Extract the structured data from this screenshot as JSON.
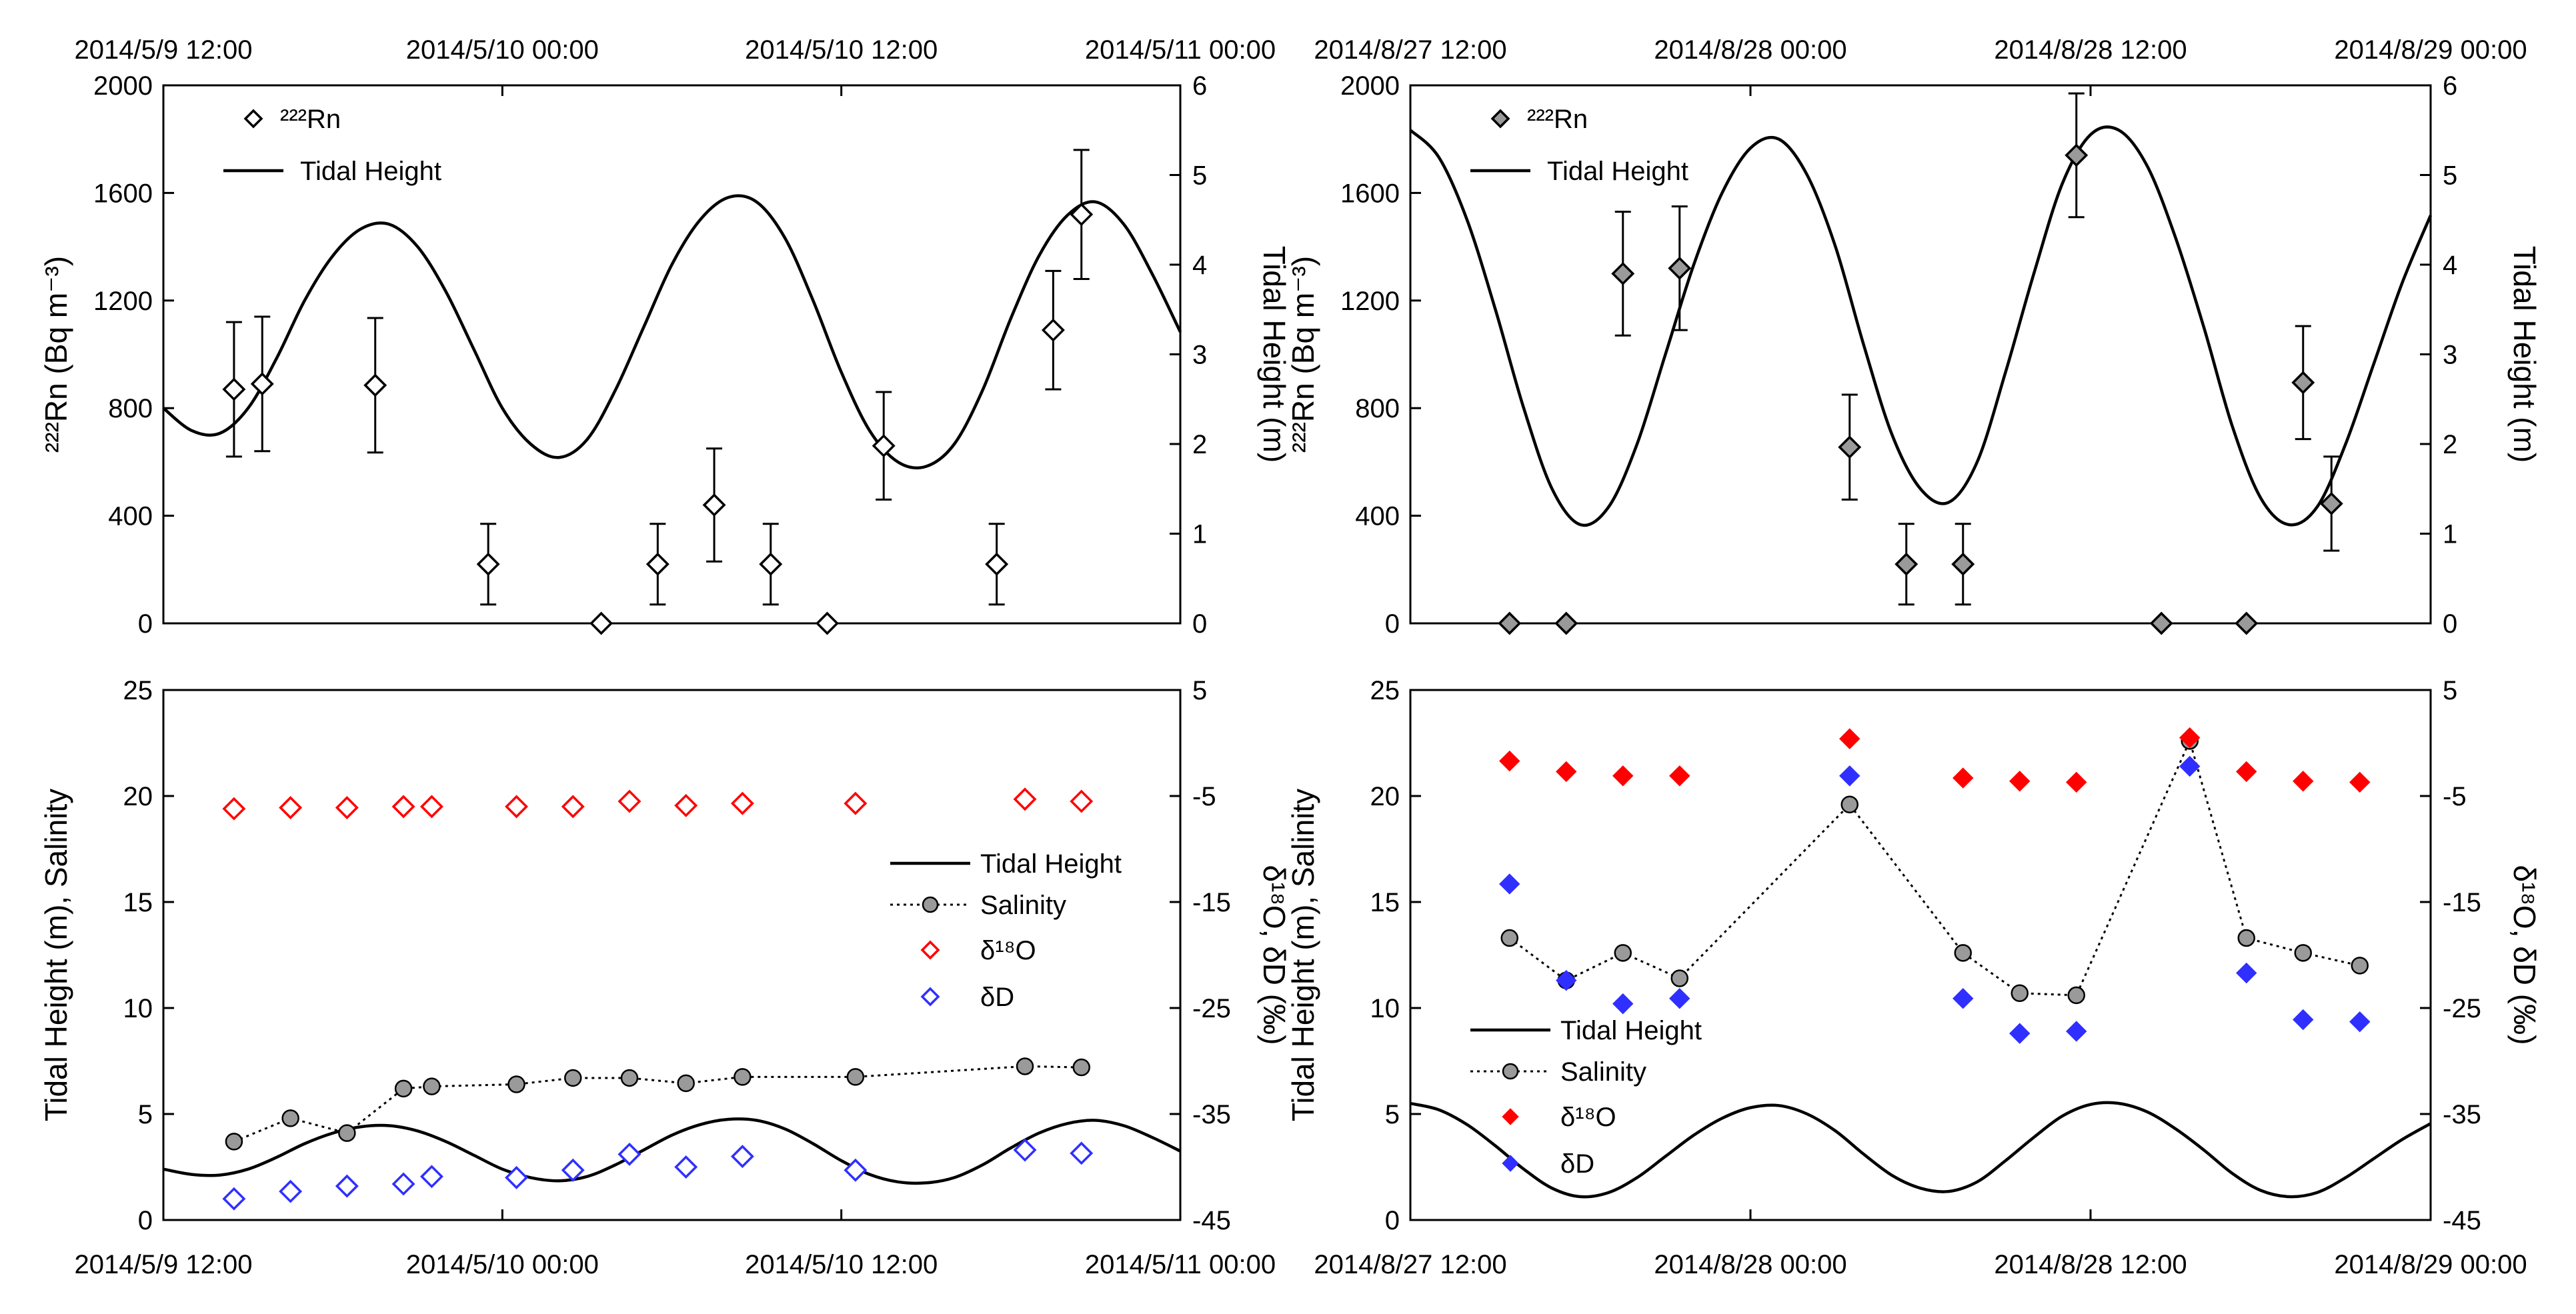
{
  "figure": {
    "legend_labels": {
      "rn": "²²²Rn",
      "tidal": "Tidal Height",
      "salinity": "Salinity",
      "d18o": "δ¹⁸O",
      "dd": "δD"
    },
    "axis_titles": {
      "rn": "²²²Rn (Bq m⁻³)",
      "tidal": "Tidal Height (m)",
      "tidal_salinity": "Tidal Height (m), Salinity",
      "isotope": "δ¹⁸O, δD (‰)"
    },
    "colors": {
      "d18o": "#ff0000",
      "dd": "#2f2fff",
      "salinity_marker": "#9a9a9a",
      "rn_right_marker": "#9a9a9a"
    }
  },
  "chart_data": [
    {
      "id": "may-radon",
      "type": "scatter",
      "xlabel_ticks": [
        "2014/5/9 12:00",
        "2014/5/10 00:00",
        "2014/5/10 12:00",
        "2014/5/11 00:00"
      ],
      "xrange_hours": [
        0,
        36
      ],
      "ylim": [
        0,
        2000
      ],
      "yticks": [
        0,
        400,
        800,
        1200,
        1600,
        2000
      ],
      "ylabel": "²²²Rn (Bq m⁻³)",
      "y2lim": [
        0,
        6
      ],
      "y2ticks": [
        0,
        1,
        2,
        3,
        4,
        5,
        6
      ],
      "y2label": "Tidal Height (m)",
      "legend_position": "top-left",
      "rn": {
        "name": "²²²Rn",
        "x": [
          2.5,
          3.5,
          7.5,
          11.5,
          15.5,
          17.5,
          19.5,
          21.5,
          23.5,
          25.5,
          29.5,
          31.5,
          32.5
        ],
        "y": [
          870,
          890,
          885,
          220,
          0,
          220,
          440,
          220,
          0,
          660,
          220,
          1090,
          1520
        ],
        "err": [
          250,
          250,
          250,
          150,
          0,
          150,
          210,
          150,
          0,
          200,
          150,
          220,
          240
        ]
      },
      "tide": {
        "name": "Tidal Height",
        "x": [
          0,
          1,
          2,
          3,
          4,
          5,
          6,
          7,
          8,
          9,
          10,
          11,
          12,
          13,
          14,
          15,
          16,
          17,
          18,
          19,
          20,
          21,
          22,
          23,
          24,
          25,
          26,
          27,
          28,
          29,
          30,
          31,
          32,
          33,
          34,
          35,
          36
        ],
        "y": [
          2.4,
          2.15,
          2.12,
          2.4,
          2.95,
          3.6,
          4.1,
          4.4,
          4.45,
          4.2,
          3.7,
          3.05,
          2.4,
          2.0,
          1.85,
          2.05,
          2.6,
          3.3,
          4.0,
          4.5,
          4.75,
          4.7,
          4.3,
          3.6,
          2.8,
          2.15,
          1.8,
          1.75,
          2.0,
          2.6,
          3.4,
          4.1,
          4.55,
          4.7,
          4.45,
          3.9,
          3.25
        ]
      }
    },
    {
      "id": "aug-radon",
      "type": "scatter",
      "xlabel_ticks": [
        "2014/8/27 12:00",
        "2014/8/28 00:00",
        "2014/8/28 12:00",
        "2014/8/29 00:00"
      ],
      "xrange_hours": [
        0,
        36
      ],
      "ylim": [
        0,
        2000
      ],
      "yticks": [
        0,
        400,
        800,
        1200,
        1600,
        2000
      ],
      "ylabel": "²²²Rn (Bq m⁻³)",
      "y2lim": [
        0,
        6
      ],
      "y2ticks": [
        0,
        1,
        2,
        3,
        4,
        5,
        6
      ],
      "y2label": "Tidal Height (m)",
      "legend_position": "top-left",
      "rn": {
        "name": "²²²Rn",
        "x": [
          3.5,
          5.5,
          7.5,
          9.5,
          15.5,
          17.5,
          19.5,
          23.5,
          26.5,
          29.5,
          31.5,
          32.5
        ],
        "y": [
          0,
          0,
          1300,
          1320,
          655,
          220,
          220,
          1740,
          0,
          0,
          895,
          445
        ],
        "err": [
          0,
          0,
          230,
          230,
          195,
          150,
          150,
          230,
          0,
          0,
          210,
          175
        ]
      },
      "tide": {
        "name": "Tidal Height",
        "x": [
          0,
          1,
          2,
          3,
          4,
          5,
          6,
          7,
          8,
          9,
          10,
          11,
          12,
          13,
          14,
          15,
          16,
          17,
          18,
          19,
          20,
          21,
          22,
          23,
          24,
          25,
          26,
          27,
          28,
          29,
          30,
          31,
          32,
          33,
          34,
          35,
          36
        ],
        "y": [
          5.5,
          5.2,
          4.5,
          3.5,
          2.4,
          1.5,
          1.1,
          1.3,
          2.0,
          3.0,
          4.0,
          4.8,
          5.3,
          5.4,
          5.0,
          4.2,
          3.1,
          2.1,
          1.5,
          1.35,
          1.8,
          2.8,
          3.9,
          4.9,
          5.45,
          5.5,
          5.1,
          4.3,
          3.3,
          2.2,
          1.4,
          1.1,
          1.3,
          2.0,
          2.9,
          3.8,
          4.55
        ]
      }
    },
    {
      "id": "may-isotope",
      "type": "scatter",
      "xlabel_ticks": [
        "2014/5/9 12:00",
        "2014/5/10 00:00",
        "2014/5/10 12:00",
        "2014/5/11 00:00"
      ],
      "xrange_hours": [
        0,
        36
      ],
      "ylim": [
        0,
        25
      ],
      "yticks": [
        0,
        5,
        10,
        15,
        20,
        25
      ],
      "ylabel": "Tidal Height (m), Salinity",
      "y2lim": [
        -45,
        5
      ],
      "y2ticks": [
        -45,
        -35,
        -25,
        -15,
        -5,
        5
      ],
      "y2label": "δ¹⁸O, δD (‰)",
      "legend_position": "right",
      "tide": {
        "name": "Tidal Height",
        "x": [
          0,
          1,
          2,
          3,
          4,
          5,
          6,
          7,
          8,
          9,
          10,
          11,
          12,
          13,
          14,
          15,
          16,
          17,
          18,
          19,
          20,
          21,
          22,
          23,
          24,
          25,
          26,
          27,
          28,
          29,
          30,
          31,
          32,
          33,
          34,
          35,
          36
        ],
        "y": [
          2.4,
          2.15,
          2.12,
          2.4,
          2.95,
          3.6,
          4.1,
          4.4,
          4.45,
          4.2,
          3.7,
          3.05,
          2.4,
          2.0,
          1.85,
          2.05,
          2.6,
          3.3,
          4.0,
          4.5,
          4.75,
          4.7,
          4.3,
          3.6,
          2.8,
          2.15,
          1.8,
          1.75,
          2.0,
          2.6,
          3.4,
          4.1,
          4.55,
          4.7,
          4.45,
          3.9,
          3.25
        ]
      },
      "salinity": {
        "name": "Salinity",
        "x": [
          2.5,
          4.5,
          6.5,
          8.5,
          9.5,
          12.5,
          14.5,
          16.5,
          18.5,
          20.5,
          24.5,
          30.5,
          32.5
        ],
        "y": [
          3.7,
          4.8,
          4.1,
          6.2,
          6.3,
          6.4,
          6.7,
          6.7,
          6.45,
          6.75,
          6.75,
          7.25,
          7.2
        ]
      },
      "d18o": {
        "name": "δ¹⁸O",
        "x": [
          2.5,
          4.5,
          6.5,
          8.5,
          9.5,
          12.5,
          14.5,
          16.5,
          18.5,
          20.5,
          24.5,
          30.5,
          32.5
        ],
        "y": [
          -6.2,
          -6.1,
          -6.1,
          -6.0,
          -6.0,
          -6.0,
          -6.0,
          -5.5,
          -5.9,
          -5.7,
          -5.7,
          -5.3,
          -5.5
        ]
      },
      "dd": {
        "name": "δD",
        "x": [
          2.5,
          4.5,
          6.5,
          8.5,
          9.5,
          12.5,
          14.5,
          16.5,
          18.5,
          20.5,
          24.5,
          30.5,
          32.5
        ],
        "y": [
          -43.0,
          -42.3,
          -41.8,
          -41.6,
          -40.9,
          -41.0,
          -40.3,
          -38.8,
          -40.0,
          -39.0,
          -40.3,
          -38.4,
          -38.7
        ]
      }
    },
    {
      "id": "aug-isotope",
      "type": "scatter",
      "xlabel_ticks": [
        "2014/8/27 12:00",
        "2014/8/28 00:00",
        "2014/8/28 12:00",
        "2014/8/29 00:00"
      ],
      "xrange_hours": [
        0,
        36
      ],
      "ylim": [
        0,
        25
      ],
      "yticks": [
        0,
        5,
        10,
        15,
        20,
        25
      ],
      "ylabel": "Tidal Height (m), Salinity",
      "y2lim": [
        -45,
        5
      ],
      "y2ticks": [
        -45,
        -35,
        -25,
        -15,
        -5,
        5
      ],
      "y2label": "δ¹⁸O, δD (‰)",
      "legend_position": "bottom-left",
      "tide": {
        "name": "Tidal Height",
        "x": [
          0,
          1,
          2,
          3,
          4,
          5,
          6,
          7,
          8,
          9,
          10,
          11,
          12,
          13,
          14,
          15,
          16,
          17,
          18,
          19,
          20,
          21,
          22,
          23,
          24,
          25,
          26,
          27,
          28,
          29,
          30,
          31,
          32,
          33,
          34,
          35,
          36
        ],
        "y": [
          5.5,
          5.2,
          4.5,
          3.5,
          2.4,
          1.5,
          1.1,
          1.3,
          2.0,
          3.0,
          4.0,
          4.8,
          5.3,
          5.4,
          5.0,
          4.2,
          3.1,
          2.1,
          1.5,
          1.35,
          1.8,
          2.8,
          3.9,
          4.9,
          5.45,
          5.5,
          5.1,
          4.3,
          3.3,
          2.2,
          1.4,
          1.1,
          1.3,
          2.0,
          2.9,
          3.8,
          4.55
        ]
      },
      "salinity": {
        "name": "Salinity",
        "x": [
          3.5,
          5.5,
          7.5,
          9.5,
          15.5,
          19.5,
          21.5,
          23.5,
          27.5,
          29.5,
          31.5,
          33.5
        ],
        "y": [
          13.3,
          11.3,
          12.6,
          11.4,
          19.6,
          12.6,
          10.7,
          10.6,
          22.6,
          13.3,
          12.6,
          12.0
        ]
      },
      "d18o": {
        "name": "δ¹⁸O",
        "x": [
          3.5,
          5.5,
          7.5,
          9.5,
          15.5,
          19.5,
          21.5,
          23.5,
          27.5,
          29.5,
          31.5,
          33.5
        ],
        "y": [
          -1.7,
          -2.7,
          -3.1,
          -3.1,
          0.4,
          -3.3,
          -3.6,
          -3.7,
          0.5,
          -2.7,
          -3.6,
          -3.7
        ]
      },
      "dd": {
        "name": "δD",
        "x": [
          3.5,
          5.5,
          7.5,
          9.5,
          15.5,
          19.5,
          21.5,
          23.5,
          27.5,
          29.5,
          31.5,
          33.5
        ],
        "y": [
          -13.3,
          -22.4,
          -24.6,
          -24.1,
          -3.1,
          -24.1,
          -27.4,
          -27.2,
          -2.2,
          -21.7,
          -26.1,
          -26.3
        ]
      }
    }
  ]
}
